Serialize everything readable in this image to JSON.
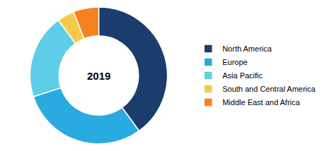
{
  "chart_data": {
    "type": "donut",
    "categories": [
      "North America",
      "Europe",
      "Asia Pacific",
      "South and Central America",
      "Middle East and Africa"
    ],
    "values": [
      40,
      30,
      20,
      4,
      6
    ],
    "colors": [
      "#1b3d6e",
      "#29abe2",
      "#5ecde8",
      "#f7c948",
      "#f5821f"
    ],
    "annotations": [
      "2019"
    ],
    "legend": "right"
  }
}
